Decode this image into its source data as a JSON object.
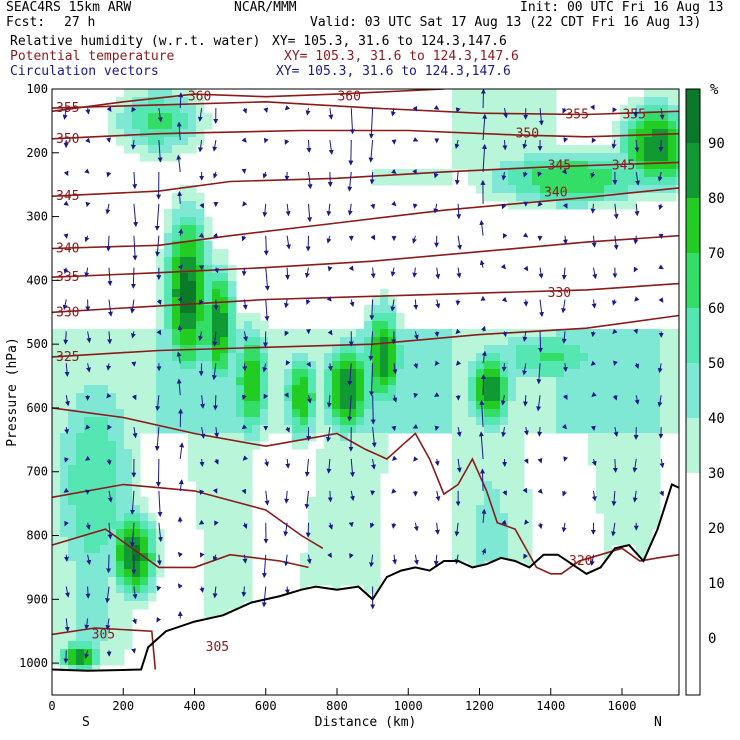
{
  "header": {
    "model": "SEAC4RS 15km ARW",
    "center": "NCAR/MMM",
    "init": "Init: 00 UTC Fri 16 Aug 13",
    "fcst_label": "Fcst:",
    "fcst_value": "27 h",
    "valid": "Valid: 03 UTC Sat 17 Aug 13 (22 CDT Fri 16 Aug 13)",
    "fields": [
      {
        "name": "Relative humidity (w.r.t. water)",
        "xy": "XY= 105.3, 31.6 to 124.3,147.6",
        "color": "#000000"
      },
      {
        "name": "Potential temperature",
        "xy": "XY= 105.3, 31.6 to 124.3,147.6",
        "color": "#8b1a1a"
      },
      {
        "name": "Circulation vectors",
        "xy": "XY= 105.3, 31.6 to 124.3,147.6",
        "color": "#1a1a8b"
      }
    ]
  },
  "chart_data": {
    "type": "heatmap",
    "xlabel": "Distance (km)",
    "ylabel": "Pressure (hPa)",
    "xlim": [
      0,
      1760
    ],
    "ylim": [
      1050,
      100
    ],
    "x_ticks": [
      0,
      200,
      400,
      600,
      800,
      1000,
      1200,
      1400,
      1600
    ],
    "y_ticks": [
      100,
      200,
      300,
      400,
      500,
      600,
      700,
      800,
      900,
      1000
    ],
    "x_end_labels": {
      "left": "S",
      "right": "N"
    },
    "colorbar": {
      "unit": "%",
      "labels": [
        90,
        80,
        70,
        60,
        50,
        40,
        30,
        20,
        10,
        0
      ],
      "colors": [
        "#f0fff0",
        "#b9f5d8",
        "#7ee8d4",
        "#55e6b4",
        "#33dd66",
        "#22cc22",
        "#119933",
        "#0a7a2a"
      ],
      "bins": [
        [
          30,
          40
        ],
        [
          40,
          50
        ],
        [
          50,
          60
        ],
        [
          60,
          70
        ],
        [
          70,
          80
        ],
        [
          80,
          90
        ],
        [
          90,
          100
        ]
      ]
    },
    "rh_cores": [
      {
        "x": 230,
        "p": 830,
        "sx": 55,
        "sp": 60,
        "v": 92
      },
      {
        "x": 380,
        "p": 420,
        "sx": 55,
        "sp": 110,
        "v": 95
      },
      {
        "x": 470,
        "p": 470,
        "sx": 40,
        "sp": 80,
        "v": 88
      },
      {
        "x": 560,
        "p": 560,
        "sx": 45,
        "sp": 80,
        "v": 78
      },
      {
        "x": 700,
        "p": 580,
        "sx": 40,
        "sp": 60,
        "v": 80
      },
      {
        "x": 830,
        "p": 570,
        "sx": 60,
        "sp": 60,
        "v": 90
      },
      {
        "x": 930,
        "p": 520,
        "sx": 45,
        "sp": 70,
        "v": 88
      },
      {
        "x": 1230,
        "p": 570,
        "sx": 50,
        "sp": 55,
        "v": 88
      },
      {
        "x": 1460,
        "p": 240,
        "sx": 220,
        "sp": 40,
        "v": 70
      },
      {
        "x": 1700,
        "p": 190,
        "sx": 90,
        "sp": 60,
        "v": 88
      },
      {
        "x": 1400,
        "p": 520,
        "sx": 160,
        "sp": 40,
        "v": 62
      },
      {
        "x": 300,
        "p": 150,
        "sx": 120,
        "sp": 50,
        "v": 62
      },
      {
        "x": 120,
        "p": 720,
        "sx": 110,
        "sp": 180,
        "v": 60
      },
      {
        "x": 80,
        "p": 990,
        "sx": 50,
        "sp": 20,
        "v": 88
      }
    ],
    "theta_contours": [
      {
        "level": 360,
        "label": "360",
        "label_positions": [
          [
            370,
            112
          ],
          [
            790,
            112
          ]
        ],
        "points": [
          [
            0,
            135
          ],
          [
            200,
            120
          ],
          [
            400,
            108
          ],
          [
            600,
            112
          ],
          [
            800,
            108
          ],
          [
            1100,
            100
          ]
        ]
      },
      {
        "level": 355,
        "label": "355",
        "label_positions": [
          [
            0,
            130
          ],
          [
            1430,
            140
          ],
          [
            1590,
            140
          ]
        ],
        "points": [
          [
            0,
            130
          ],
          [
            300,
            125
          ],
          [
            600,
            120
          ],
          [
            900,
            130
          ],
          [
            1200,
            138
          ],
          [
            1500,
            140
          ],
          [
            1760,
            135
          ]
        ]
      },
      {
        "level": 350,
        "label": "350",
        "label_positions": [
          [
            0,
            178
          ],
          [
            1290,
            170
          ]
        ],
        "points": [
          [
            0,
            178
          ],
          [
            300,
            170
          ],
          [
            700,
            165
          ],
          [
            1000,
            165
          ],
          [
            1300,
            172
          ],
          [
            1500,
            175
          ],
          [
            1760,
            170
          ]
        ]
      },
      {
        "level": 345,
        "label": "345",
        "label_positions": [
          [
            0,
            268
          ],
          [
            1380,
            220
          ],
          [
            1560,
            220
          ]
        ],
        "points": [
          [
            0,
            268
          ],
          [
            300,
            260
          ],
          [
            500,
            245
          ],
          [
            800,
            240
          ],
          [
            1100,
            230
          ],
          [
            1400,
            222
          ],
          [
            1760,
            215
          ]
        ]
      },
      {
        "level": 340,
        "label": "340",
        "label_positions": [
          [
            0,
            350
          ],
          [
            1370,
            262
          ]
        ],
        "points": [
          [
            0,
            350
          ],
          [
            300,
            345
          ],
          [
            500,
            330
          ],
          [
            800,
            310
          ],
          [
            1100,
            290
          ],
          [
            1300,
            280
          ],
          [
            1500,
            270
          ],
          [
            1760,
            255
          ]
        ]
      },
      {
        "level": 335,
        "label": "335",
        "label_positions": [
          [
            0,
            395
          ]
        ],
        "points": [
          [
            0,
            395
          ],
          [
            300,
            388
          ],
          [
            600,
            380
          ],
          [
            900,
            370
          ],
          [
            1200,
            355
          ],
          [
            1500,
            340
          ],
          [
            1760,
            330
          ]
        ]
      },
      {
        "level": 330,
        "label": "330",
        "label_positions": [
          [
            0,
            450
          ],
          [
            1380,
            420
          ]
        ],
        "points": [
          [
            0,
            450
          ],
          [
            300,
            440
          ],
          [
            600,
            430
          ],
          [
            900,
            425
          ],
          [
            1200,
            420
          ],
          [
            1500,
            415
          ],
          [
            1760,
            405
          ]
        ]
      },
      {
        "level": 325,
        "label": "325",
        "label_positions": [
          [
            0,
            520
          ]
        ],
        "points": [
          [
            0,
            520
          ],
          [
            300,
            510
          ],
          [
            600,
            505
          ],
          [
            900,
            500
          ],
          [
            1200,
            485
          ],
          [
            1500,
            475
          ],
          [
            1760,
            455
          ]
        ]
      },
      {
        "level": 320,
        "label": "320",
        "label_positions": [
          [
            1440,
            840
          ]
        ],
        "points": [
          [
            0,
            600
          ],
          [
            200,
            615
          ],
          [
            400,
            640
          ],
          [
            600,
            660
          ],
          [
            800,
            640
          ],
          [
            880,
            665
          ],
          [
            940,
            680
          ],
          [
            980,
            660
          ],
          [
            1020,
            640
          ],
          [
            1060,
            680
          ],
          [
            1100,
            735
          ],
          [
            1140,
            720
          ],
          [
            1180,
            680
          ],
          [
            1220,
            730
          ],
          [
            1250,
            780
          ],
          [
            1300,
            790
          ],
          [
            1360,
            850
          ],
          [
            1400,
            860
          ],
          [
            1430,
            860
          ],
          [
            1480,
            840
          ],
          [
            1540,
            830
          ],
          [
            1600,
            820
          ],
          [
            1650,
            840
          ],
          [
            1700,
            835
          ],
          [
            1760,
            830
          ]
        ]
      },
      {
        "level": 315,
        "label": "",
        "label_positions": [],
        "points": [
          [
            0,
            740
          ],
          [
            200,
            720
          ],
          [
            400,
            730
          ],
          [
            600,
            760
          ],
          [
            700,
            800
          ],
          [
            760,
            820
          ]
        ]
      },
      {
        "level": 310,
        "label": "",
        "label_positions": [],
        "points": [
          [
            0,
            815
          ],
          [
            150,
            790
          ],
          [
            300,
            850
          ],
          [
            400,
            850
          ],
          [
            500,
            830
          ],
          [
            640,
            840
          ],
          [
            720,
            850
          ]
        ]
      },
      {
        "level": 305,
        "label": "305",
        "label_positions": [
          [
            100,
            955
          ],
          [
            420,
            975
          ]
        ],
        "points": [
          [
            0,
            955
          ],
          [
            120,
            945
          ],
          [
            280,
            950
          ],
          [
            290,
            1010
          ]
        ]
      }
    ],
    "terrain": [
      [
        0,
        1010
      ],
      [
        100,
        1012
      ],
      [
        250,
        1010
      ],
      [
        270,
        975
      ],
      [
        320,
        950
      ],
      [
        400,
        935
      ],
      [
        480,
        925
      ],
      [
        560,
        905
      ],
      [
        640,
        895
      ],
      [
        700,
        885
      ],
      [
        740,
        880
      ],
      [
        800,
        885
      ],
      [
        860,
        880
      ],
      [
        900,
        900
      ],
      [
        940,
        865
      ],
      [
        980,
        855
      ],
      [
        1020,
        850
      ],
      [
        1060,
        855
      ],
      [
        1100,
        840
      ],
      [
        1140,
        840
      ],
      [
        1180,
        850
      ],
      [
        1220,
        845
      ],
      [
        1260,
        835
      ],
      [
        1300,
        840
      ],
      [
        1340,
        850
      ],
      [
        1380,
        830
      ],
      [
        1420,
        830
      ],
      [
        1460,
        845
      ],
      [
        1500,
        860
      ],
      [
        1540,
        850
      ],
      [
        1580,
        820
      ],
      [
        1620,
        815
      ],
      [
        1660,
        840
      ],
      [
        1700,
        790
      ],
      [
        1740,
        720
      ],
      [
        1760,
        725
      ]
    ],
    "vector_columns": [
      {
        "x": 40,
        "v": -1.6
      },
      {
        "x": 100,
        "v": -1.4
      },
      {
        "x": 160,
        "v": -2.2
      },
      {
        "x": 230,
        "v": -3.0
      },
      {
        "x": 300,
        "v": -3.4
      },
      {
        "x": 360,
        "v": 2.2
      },
      {
        "x": 420,
        "v": -1.6
      },
      {
        "x": 460,
        "v": -2.0
      },
      {
        "x": 540,
        "v": -1.2
      },
      {
        "x": 600,
        "v": -2.8
      },
      {
        "x": 660,
        "v": -1.6
      },
      {
        "x": 720,
        "v": -2.2
      },
      {
        "x": 780,
        "v": -1.8
      },
      {
        "x": 840,
        "v": -3.2
      },
      {
        "x": 900,
        "v": -4.0
      },
      {
        "x": 960,
        "v": -1.5
      },
      {
        "x": 1020,
        "v": -1.2
      },
      {
        "x": 1080,
        "v": -1.4
      },
      {
        "x": 1140,
        "v": -1.8
      },
      {
        "x": 1210,
        "v": 3.4
      },
      {
        "x": 1270,
        "v": -1.2
      },
      {
        "x": 1330,
        "v": -1.4
      },
      {
        "x": 1370,
        "v": -2.6
      },
      {
        "x": 1440,
        "v": -1.6
      },
      {
        "x": 1520,
        "v": -1.4
      },
      {
        "x": 1580,
        "v": -1.8
      },
      {
        "x": 1640,
        "v": -1.6
      },
      {
        "x": 1710,
        "v": -1.4
      }
    ]
  },
  "colors": {
    "theta": "#8b1a1a",
    "vectors": "#1a1a8b",
    "terrain": "#000000"
  }
}
